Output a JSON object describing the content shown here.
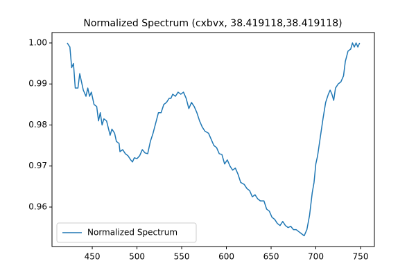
{
  "chart_data": {
    "type": "line",
    "title": "Normalized Spectrum (cxbvx, 38.419118,38.419118)",
    "x": [
      422,
      425,
      427,
      429,
      431,
      434,
      436,
      440,
      443,
      445,
      447,
      449,
      452,
      455,
      457,
      459,
      461,
      463,
      466,
      470,
      472,
      475,
      477,
      480,
      481,
      484,
      487,
      490,
      493,
      495,
      497,
      500,
      503,
      506,
      509,
      512,
      515,
      518,
      521,
      524,
      527,
      530,
      533,
      536,
      538,
      540,
      543,
      546,
      549,
      552,
      555,
      558,
      561,
      564,
      567,
      570,
      573,
      576,
      580,
      583,
      586,
      589,
      592,
      595,
      598,
      601,
      604,
      607,
      610,
      613,
      616,
      620,
      623,
      626,
      629,
      632,
      635,
      638,
      642,
      645,
      648,
      651,
      654,
      657,
      660,
      663,
      666,
      669,
      672,
      675,
      678,
      681,
      684,
      687,
      690,
      693,
      696,
      698,
      700,
      702,
      705,
      708,
      711,
      714,
      716,
      718,
      720,
      722,
      725,
      728,
      731,
      733,
      736,
      739,
      741,
      743,
      745,
      747,
      749
    ],
    "series": [
      {
        "name": "Normalized Spectrum",
        "color": "#1f77b4",
        "values": [
          1.0,
          0.999,
          0.994,
          0.995,
          0.989,
          0.989,
          0.9925,
          0.9885,
          0.987,
          0.989,
          0.987,
          0.988,
          0.985,
          0.9845,
          0.981,
          0.983,
          0.98,
          0.9815,
          0.981,
          0.9775,
          0.979,
          0.978,
          0.976,
          0.9755,
          0.9735,
          0.974,
          0.973,
          0.9725,
          0.9715,
          0.971,
          0.972,
          0.9718,
          0.9725,
          0.974,
          0.9732,
          0.973,
          0.976,
          0.978,
          0.9805,
          0.983,
          0.983,
          0.985,
          0.9855,
          0.9865,
          0.9865,
          0.9875,
          0.987,
          0.988,
          0.9875,
          0.988,
          0.9865,
          0.984,
          0.9855,
          0.9845,
          0.983,
          0.981,
          0.9795,
          0.9785,
          0.978,
          0.9765,
          0.975,
          0.9745,
          0.973,
          0.9728,
          0.9705,
          0.9715,
          0.97,
          0.969,
          0.9695,
          0.968,
          0.966,
          0.9655,
          0.9645,
          0.964,
          0.9625,
          0.963,
          0.962,
          0.9615,
          0.9615,
          0.9595,
          0.959,
          0.9575,
          0.957,
          0.956,
          0.9555,
          0.9565,
          0.9555,
          0.955,
          0.9553,
          0.9545,
          0.9545,
          0.954,
          0.9535,
          0.953,
          0.9545,
          0.958,
          0.9635,
          0.966,
          0.9705,
          0.9725,
          0.977,
          0.9815,
          0.9855,
          0.9875,
          0.9885,
          0.9875,
          0.986,
          0.989,
          0.99,
          0.9905,
          0.992,
          0.9955,
          0.998,
          0.9985,
          1.0,
          0.999,
          1.0,
          0.999,
          1.0
        ]
      }
    ],
    "xlim": [
      405,
      765.5
    ],
    "ylim": [
      0.95038,
      1.00253
    ],
    "xticks": [
      450,
      500,
      550,
      600,
      650,
      700,
      750
    ],
    "yticks": [
      0.96,
      0.97,
      0.98,
      0.99,
      {
        "value": 1,
        "label": "1.00"
      }
    ],
    "grid": false,
    "legend": "lower left"
  }
}
